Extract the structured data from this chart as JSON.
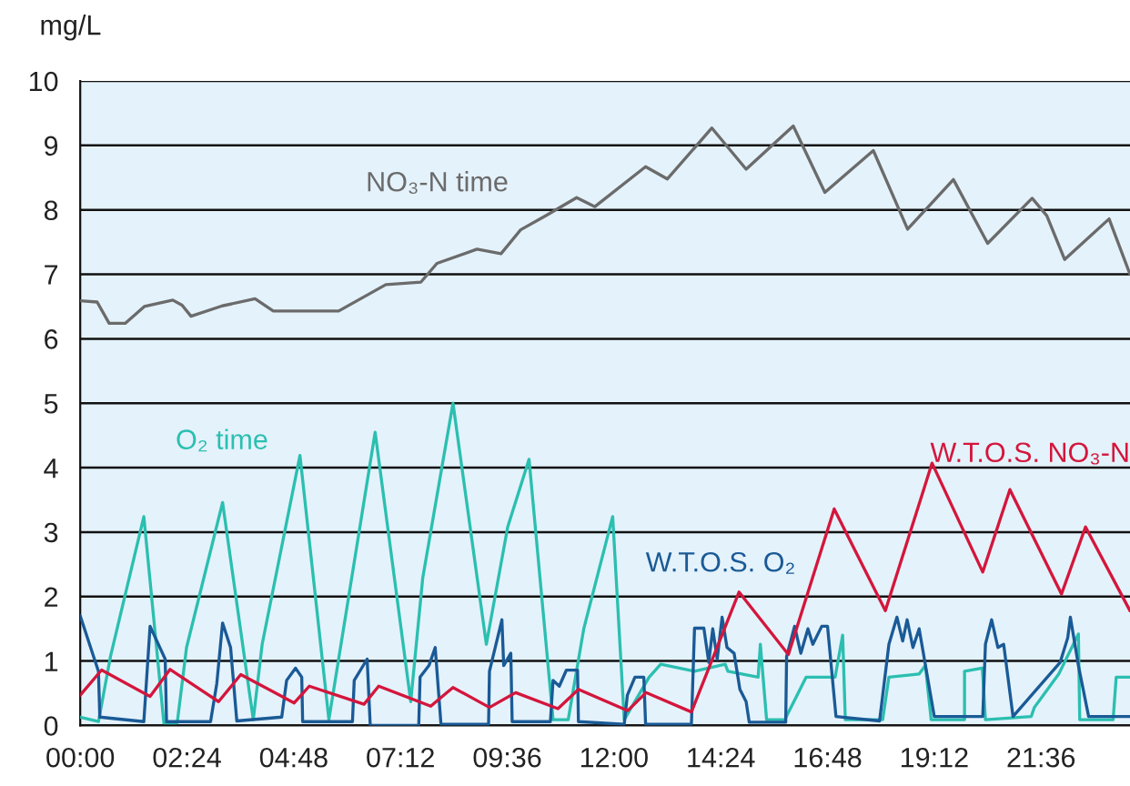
{
  "chart_data": {
    "type": "line",
    "ylabel": "mg/L",
    "xlim": [
      0,
      23.6
    ],
    "xticks": [
      {
        "value": 0,
        "label": "00:00"
      },
      {
        "value": 2.4,
        "label": "02:24"
      },
      {
        "value": 4.8,
        "label": "04:48"
      },
      {
        "value": 7.2,
        "label": "07:12"
      },
      {
        "value": 9.6,
        "label": "09:36"
      },
      {
        "value": 12,
        "label": "12:00"
      },
      {
        "value": 14.4,
        "label": "14:24"
      },
      {
        "value": 16.8,
        "label": "16:48"
      },
      {
        "value": 19.2,
        "label": "19:12"
      },
      {
        "value": 21.6,
        "label": "21:36"
      }
    ],
    "ylim": [
      0,
      10
    ],
    "yticks": [
      0,
      1,
      2,
      3,
      4,
      5,
      6,
      7,
      8,
      9,
      10
    ],
    "grid": "y",
    "legend": false,
    "marker": "none",
    "line_style": "solid",
    "series": [
      {
        "name": "NO₃-N time",
        "color": "#6b6b6b",
        "x": [
          0,
          0.38,
          0.65,
          1.01,
          1.44,
          2.08,
          2.29,
          2.49,
          3.19,
          3.93,
          4.34,
          5.81,
          6.87,
          7.66,
          8.02,
          8.92,
          9.46,
          9.9,
          10.47,
          11.16,
          11.57,
          12.71,
          13.2,
          14.2,
          14.97,
          16.03,
          16.74,
          17.83,
          18.6,
          19.63,
          20.4,
          21.4,
          21.73,
          22.13,
          23.13,
          23.6
        ],
        "values": [
          6.59,
          6.57,
          6.24,
          6.24,
          6.5,
          6.6,
          6.52,
          6.35,
          6.51,
          6.62,
          6.43,
          6.43,
          6.84,
          6.88,
          7.17,
          7.39,
          7.32,
          7.69,
          7.91,
          8.19,
          8.05,
          8.67,
          8.48,
          9.27,
          8.63,
          9.3,
          8.27,
          8.92,
          7.7,
          8.47,
          7.48,
          8.18,
          7.91,
          7.23,
          7.86,
          7.0
        ]
      },
      {
        "name": "O₂ time",
        "color": "#2bbfb0",
        "x": [
          0,
          0.41,
          0.68,
          1.43,
          1.88,
          2.18,
          2.39,
          3.2,
          3.89,
          4.09,
          4.94,
          5.59,
          6.63,
          7.43,
          7.7,
          8.38,
          9.13,
          9.61,
          10.09,
          10.63,
          10.97,
          11.32,
          11.97,
          12.23,
          12.79,
          13.05,
          13.81,
          14.5,
          14.56,
          15.24,
          15.29,
          15.43,
          15.84,
          16.32,
          16.97,
          17.14,
          17.2,
          18.04,
          18.18,
          18.86,
          19.0,
          19.13,
          19.88,
          19.88,
          20.28,
          20.35,
          21.38,
          21.45,
          22.0,
          22.44,
          22.47,
          23.22,
          23.29,
          23.6
        ],
        "values": [
          0.13,
          0.06,
          1.07,
          3.24,
          0.04,
          0.04,
          1.21,
          3.46,
          0.09,
          1.26,
          4.19,
          0.09,
          4.55,
          0.37,
          2.29,
          5.0,
          1.26,
          3.08,
          4.13,
          0.09,
          0.09,
          1.5,
          3.24,
          0.09,
          0.75,
          0.95,
          0.84,
          0.95,
          0.84,
          0.75,
          1.26,
          0.09,
          0.09,
          0.75,
          0.75,
          1.4,
          0.09,
          0.09,
          0.75,
          0.8,
          0.93,
          0.09,
          0.09,
          0.84,
          0.89,
          0.09,
          0.14,
          0.28,
          0.8,
          1.42,
          0.09,
          0.09,
          0.75,
          0.75
        ]
      },
      {
        "name": "W.T.O.S. O₂",
        "color": "#1a5a96",
        "x": [
          0,
          0.41,
          0.44,
          1.43,
          1.57,
          1.91,
          1.94,
          2.93,
          3.07,
          3.2,
          3.38,
          3.52,
          4.53,
          4.64,
          4.84,
          4.98,
          5.0,
          6.12,
          6.16,
          6.45,
          6.52,
          7.61,
          7.64,
          7.84,
          7.98,
          8.11,
          9.18,
          9.2,
          9.48,
          9.52,
          9.68,
          9.71,
          10.57,
          10.63,
          10.77,
          10.93,
          11.18,
          11.2,
          12.23,
          12.3,
          12.47,
          12.67,
          12.71,
          13.74,
          13.81,
          14.02,
          14.13,
          14.22,
          14.32,
          14.43,
          14.54,
          14.7,
          14.83,
          14.97,
          15.04,
          15.86,
          15.88,
          16.06,
          16.2,
          16.36,
          16.47,
          16.67,
          16.8,
          16.99,
          17.97,
          18.18,
          18.36,
          18.49,
          18.59,
          18.72,
          18.86,
          18.99,
          19.2,
          20.29,
          20.35,
          20.49,
          20.63,
          20.76,
          20.97,
          22.03,
          22.2,
          22.26,
          22.44,
          22.67,
          23.6
        ],
        "values": [
          1.7,
          0.84,
          0.13,
          0.06,
          1.54,
          1.03,
          0.06,
          0.06,
          0.65,
          1.59,
          1.21,
          0.07,
          0.13,
          0.7,
          0.89,
          0.75,
          0.06,
          0.06,
          0.7,
          1.03,
          0.0,
          0.0,
          0.75,
          0.93,
          1.21,
          0.02,
          0.02,
          0.84,
          1.64,
          0.93,
          1.12,
          0.06,
          0.06,
          0.7,
          0.61,
          0.86,
          0.86,
          0.06,
          0.02,
          0.47,
          0.75,
          0.75,
          0.02,
          0.02,
          1.51,
          1.51,
          0.98,
          1.5,
          1.03,
          1.68,
          1.21,
          1.12,
          0.56,
          0.37,
          0.05,
          0.05,
          1.07,
          1.54,
          1.12,
          1.5,
          1.26,
          1.54,
          1.54,
          0.14,
          0.07,
          1.26,
          1.68,
          1.31,
          1.64,
          1.21,
          1.5,
          0.98,
          0.14,
          0.14,
          1.26,
          1.64,
          1.21,
          1.26,
          0.14,
          0.98,
          1.36,
          1.68,
          0.93,
          0.14,
          0.14
        ]
      },
      {
        "name": "W.T.O.S. NO₃-N",
        "color": "#d4163c",
        "x": [
          0,
          0.48,
          1.57,
          2.02,
          3.11,
          3.61,
          4.81,
          5.15,
          6.38,
          6.71,
          7.88,
          8.38,
          9.2,
          9.79,
          10.74,
          11.2,
          12.31,
          12.72,
          13.74,
          14.81,
          15.92,
          16.95,
          18.1,
          19.15,
          20.29,
          20.9,
          22.06,
          22.6,
          23.6
        ],
        "values": [
          0.47,
          0.86,
          0.45,
          0.87,
          0.37,
          0.79,
          0.35,
          0.61,
          0.33,
          0.61,
          0.3,
          0.59,
          0.28,
          0.51,
          0.26,
          0.56,
          0.23,
          0.51,
          0.21,
          2.07,
          1.1,
          3.36,
          1.78,
          4.07,
          2.38,
          3.66,
          2.04,
          3.08,
          1.78
        ]
      }
    ]
  }
}
